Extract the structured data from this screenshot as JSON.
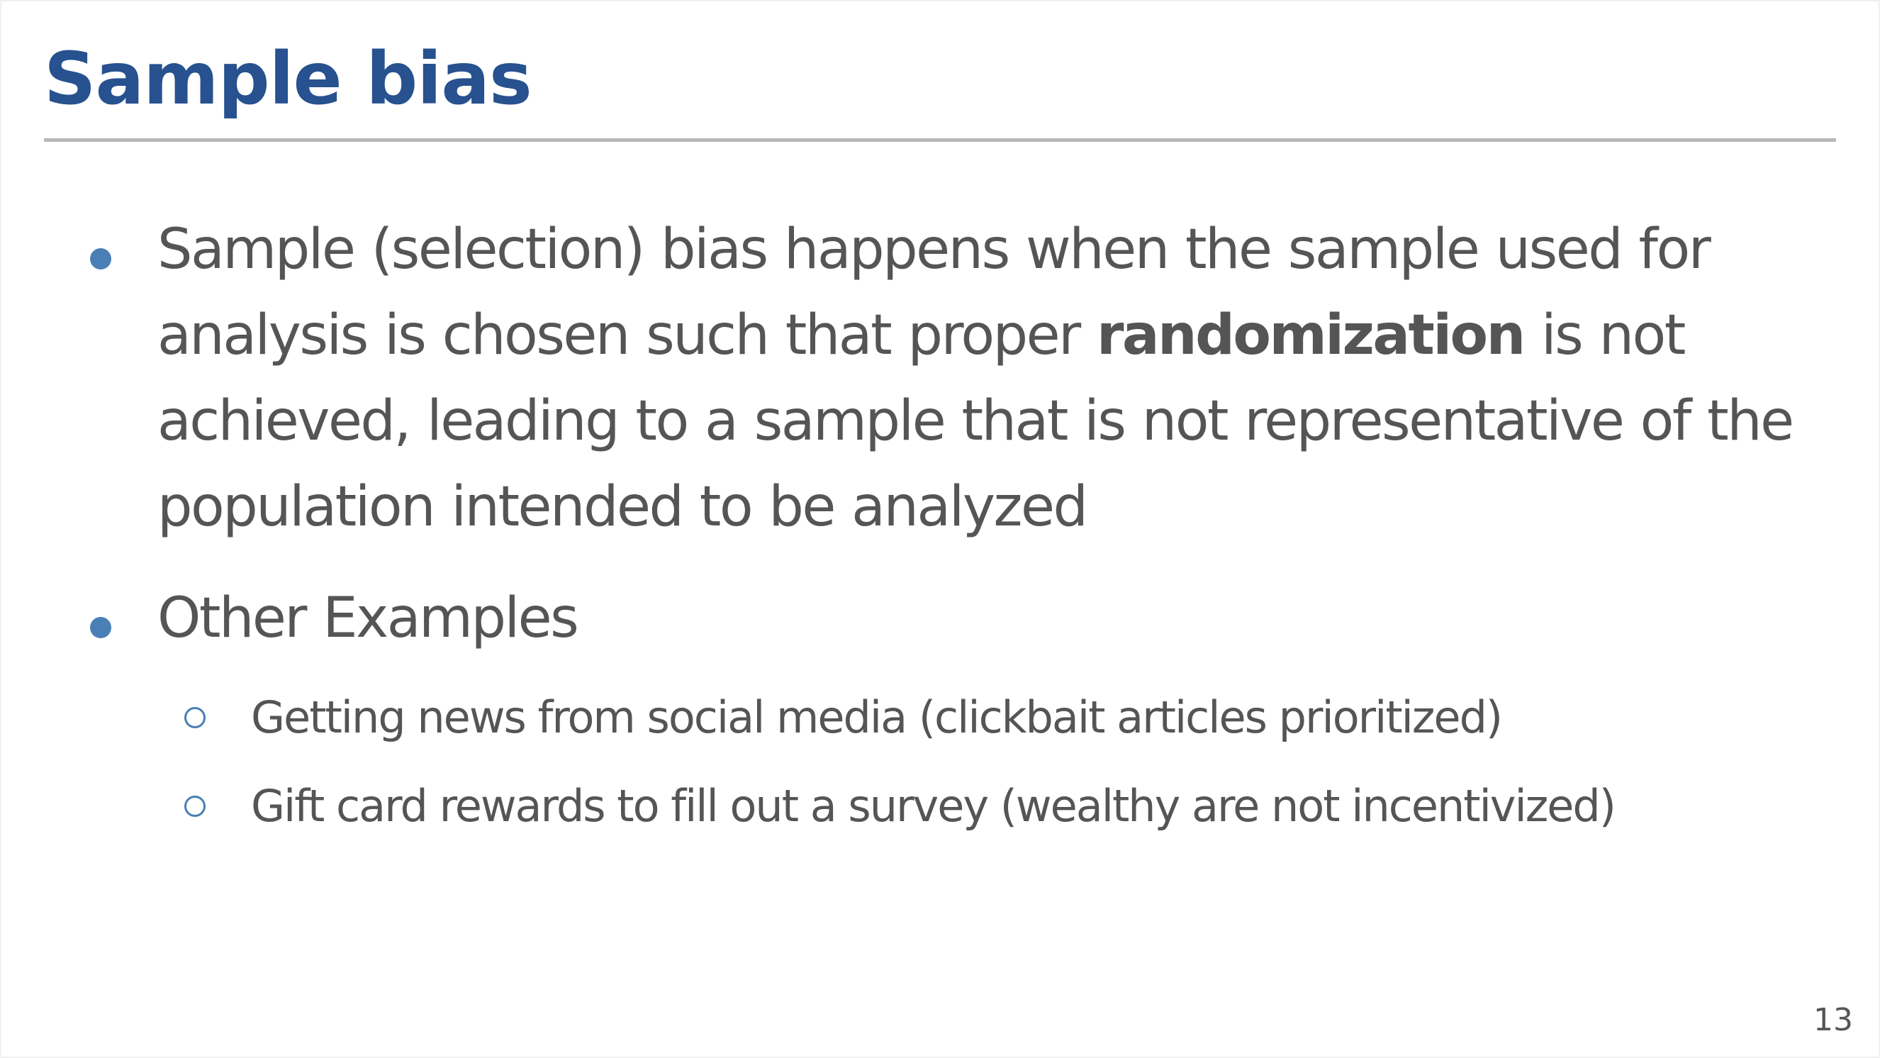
{
  "slide": {
    "title": "Sample bias",
    "page_number": "13",
    "colors": {
      "title": "#27518f",
      "text": "#555555",
      "bullet": "#4a7fb5",
      "rule": "#b8b8b8"
    },
    "bullets": [
      {
        "text_before": "Sample (selection)  bias happens when the sample used for analysis is chosen such that proper ",
        "text_bold": "randomization",
        "text_after": " is not achieved, leading to a sample that is not representative of the population intended to be analyzed"
      },
      {
        "text": "Other Examples",
        "sub_items": [
          "Getting news from social media (clickbait articles prioritized)",
          "Gift card rewards to fill out a survey (wealthy are not incentivized)"
        ]
      }
    ]
  }
}
